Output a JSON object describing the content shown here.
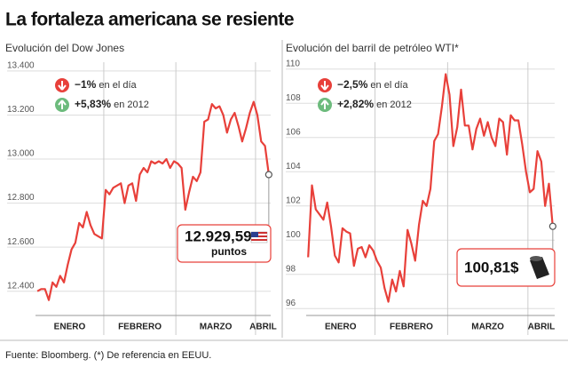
{
  "title": "La fortaleza americana se resiente",
  "source": "Fuente: Bloomberg. (*) De referencia en EEUU.",
  "chart_data": [
    {
      "type": "line",
      "title": "Evolución del Dow Jones",
      "color": "#e8403a",
      "categories": [
        "ENERO",
        null,
        null,
        null,
        null,
        null,
        null,
        null,
        null,
        null,
        null,
        null,
        null,
        null,
        null,
        null,
        null,
        null,
        "FEBRERO",
        null,
        null,
        null,
        null,
        null,
        null,
        null,
        null,
        null,
        null,
        null,
        null,
        null,
        null,
        null,
        null,
        null,
        null,
        "MARZO",
        null,
        null,
        null,
        null,
        null,
        null,
        null,
        null,
        null,
        null,
        null,
        null,
        null,
        null,
        null,
        null,
        null,
        null,
        null,
        null,
        "ABRIL",
        null,
        null,
        null
      ],
      "values": [
        12400,
        12410,
        12410,
        12360,
        12440,
        12420,
        12470,
        12440,
        12520,
        12590,
        12620,
        12710,
        12690,
        12760,
        12700,
        12660,
        12650,
        12640,
        12860,
        12840,
        12870,
        12880,
        12890,
        12800,
        12880,
        12890,
        12810,
        12930,
        12960,
        12940,
        12990,
        12980,
        12990,
        12980,
        13000,
        12960,
        12990,
        12980,
        12960,
        12770,
        12850,
        12920,
        12900,
        12940,
        13170,
        13180,
        13250,
        13230,
        13240,
        13200,
        13120,
        13180,
        13210,
        13150,
        13080,
        13140,
        13210,
        13260,
        13200,
        13080,
        13060,
        12929.59
      ],
      "ylim": [
        12290,
        13440
      ],
      "yticks": [
        {
          "value": 12400,
          "label": "12.400"
        },
        {
          "value": 12600,
          "label": "12.600"
        },
        {
          "value": 12800,
          "label": "12.800"
        },
        {
          "value": 13000,
          "label": "13.000"
        },
        {
          "value": 13200,
          "label": "13.200"
        },
        {
          "value": 13400,
          "label": "13.400"
        }
      ],
      "grid": true,
      "annotations": [
        {
          "change": "−1%",
          "text": "en el día",
          "direction": "down"
        },
        {
          "change": "+5,83%",
          "text": "en 2012",
          "direction": "up"
        }
      ],
      "end_label": "12.929,59",
      "end_unit": "puntos"
    },
    {
      "type": "line",
      "title": "Evolución del barril de petróleo WTI*",
      "color": "#e8403a",
      "categories": [
        "ENERO",
        null,
        null,
        null,
        null,
        null,
        null,
        null,
        null,
        null,
        null,
        null,
        null,
        null,
        null,
        null,
        null,
        null,
        "FEBRERO",
        null,
        null,
        null,
        null,
        null,
        null,
        null,
        null,
        null,
        null,
        null,
        null,
        null,
        null,
        null,
        null,
        null,
        null,
        "MARZO",
        null,
        null,
        null,
        null,
        null,
        null,
        null,
        null,
        null,
        null,
        null,
        null,
        null,
        null,
        null,
        null,
        null,
        null,
        null,
        null,
        "ABRIL",
        null,
        null,
        null,
        null,
        null,
        null
      ],
      "values": [
        99,
        103.2,
        101.8,
        101.5,
        101.2,
        102.2,
        100.8,
        99.1,
        98.7,
        100.7,
        100.5,
        100.4,
        98.5,
        99.5,
        99.6,
        99,
        99.7,
        99.4,
        98.8,
        98.4,
        97.2,
        96.4,
        97.7,
        97,
        98.2,
        97.3,
        100.6,
        99.8,
        98.8,
        100.9,
        102.3,
        102,
        103,
        105.8,
        106.2,
        107.8,
        109.7,
        108.5,
        105.5,
        106.6,
        108.8,
        106.7,
        106.7,
        105.3,
        106.5,
        107.1,
        106.1,
        106.9,
        106,
        105.5,
        107.1,
        106.9,
        105,
        107.3,
        107,
        107,
        105.6,
        104,
        102.8,
        103,
        105.2,
        104.6,
        102,
        103.3,
        100.81
      ],
      "ylim": [
        95.6,
        110.4
      ],
      "yticks": [
        96,
        98,
        100,
        102,
        104,
        106,
        108,
        110
      ],
      "grid": true,
      "annotations": [
        {
          "change": "−2,5%",
          "text": "en el día",
          "direction": "down"
        },
        {
          "change": "+2,82%",
          "text": "en 2012",
          "direction": "up"
        }
      ],
      "end_label": "100,81$"
    }
  ]
}
